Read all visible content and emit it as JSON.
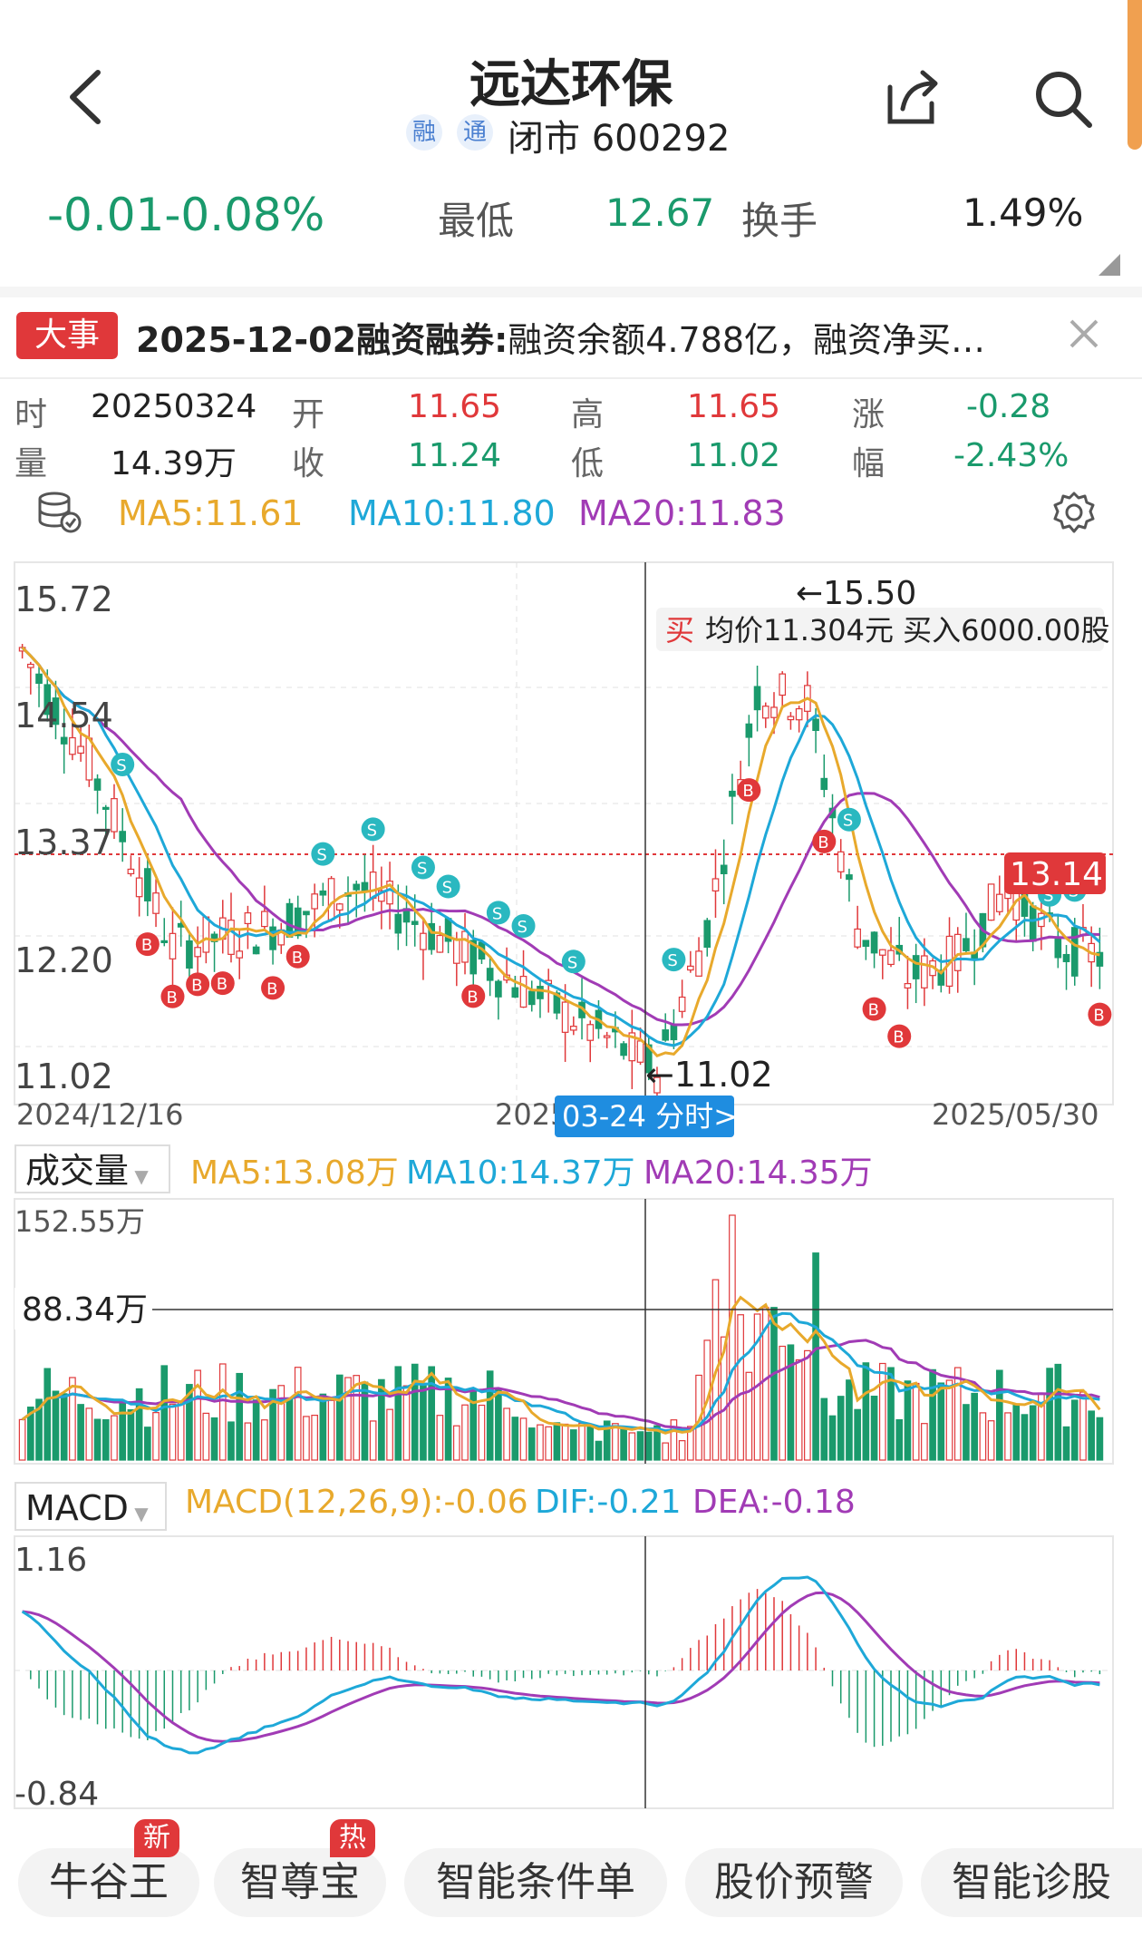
{
  "header": {
    "title": "远达环保",
    "badge_rong": "融",
    "badge_tong": "通",
    "status": "闭市 600292"
  },
  "quote": {
    "change": "-0.01-0.08%",
    "low_label": "最低",
    "low_value": "12.67",
    "turnover_label": "换手",
    "turnover_value": "1.49%"
  },
  "news": {
    "tag": "大事",
    "date_title": "2025-12-02融资融券:",
    "text": "融资余额4.788亿，融资净买…"
  },
  "info": {
    "time_label": "时",
    "time_value": "20250324",
    "open_label": "开",
    "open_value": "11.65",
    "high_label": "高",
    "high_value": "11.65",
    "chg_label": "涨",
    "chg_value": "-0.28",
    "vol_label": "量",
    "vol_value": "14.39万",
    "close_label": "收",
    "close_value": "11.24",
    "low_label": "低",
    "low_value": "11.02",
    "amp_label": "幅",
    "amp_value": "-2.43%"
  },
  "ma": {
    "ma5": "MA5:11.61",
    "ma10": "MA10:11.80",
    "ma20": "MA20:11.83"
  },
  "kline": {
    "y_labels": [
      "15.72",
      "14.54",
      "13.37",
      "12.20",
      "11.02"
    ],
    "date_start": "2024/12/16",
    "date_mid_prefix": "2025",
    "crosshair_label": "03-24 分时>",
    "date_end": "2025/05/30",
    "high_mark": "←15.50",
    "low_mark": "←11.02",
    "price_tag": "13.14",
    "trade_tag": "买",
    "trade_text": "均价11.304元 买入6000.00股",
    "signal_buy": "B",
    "signal_sell": "S"
  },
  "volume": {
    "selector": "成交量",
    "ma5": "MA5:13.08万",
    "ma10": "MA10:14.37万",
    "ma20": "MA20:14.35万",
    "top": "152.55万",
    "cross": "88.34万"
  },
  "macd": {
    "selector": "MACD",
    "macd": "MACD(12,26,9):-0.06",
    "dif": "DIF:-0.21",
    "dea": "DEA:-0.18",
    "top": "1.16",
    "bottom": "-0.84"
  },
  "bottom_buttons": [
    {
      "label": "牛谷王",
      "tag": "新"
    },
    {
      "label": "智尊宝",
      "tag": "热"
    },
    {
      "label": "智能条件单"
    },
    {
      "label": "股价预警"
    },
    {
      "label": "智能诊股"
    }
  ],
  "colors": {
    "up": "#e0383a",
    "down": "#1a9a6c",
    "ma5": "#e8a92c",
    "ma10": "#1ea8d8",
    "ma20": "#a13bb5"
  }
}
